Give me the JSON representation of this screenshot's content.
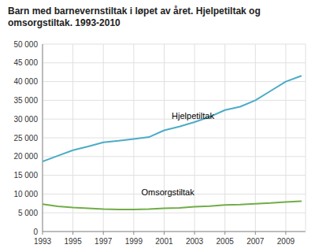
{
  "chart_data": {
    "type": "line",
    "title": "Barn med barnevernstiltak i løpet av året. Hjelpetiltak og omsorgstiltak. 1993-2010",
    "x": [
      1993,
      1994,
      1995,
      1996,
      1997,
      1998,
      1999,
      2000,
      2001,
      2002,
      2003,
      2004,
      2005,
      2006,
      2007,
      2008,
      2009,
      2010
    ],
    "series": [
      {
        "color": "#4bacc6",
        "values": [
          18700,
          20200,
          21700,
          22700,
          23800,
          24200,
          24700,
          25200,
          27000,
          28000,
          29200,
          30600,
          32400,
          33300,
          35000,
          37500,
          40000,
          41500
        ]
      },
      {
        "color": "#70ad47",
        "values": [
          7300,
          6700,
          6400,
          6200,
          6000,
          5900,
          5900,
          6000,
          6200,
          6300,
          6600,
          6800,
          7100,
          7200,
          7400,
          7600,
          7900,
          8100
        ]
      }
    ],
    "annotations": [
      {
        "text": "Hjelpetiltak",
        "x": 2001.5,
        "y": 30000
      },
      {
        "text": "Omsorgstiltak",
        "x": 1999.5,
        "y": 9600
      }
    ],
    "xlim": [
      1993,
      2010.3
    ],
    "xticks": [
      1993,
      1995,
      1997,
      1999,
      2001,
      2003,
      2005,
      2007,
      2009
    ],
    "ylim": [
      0,
      50000
    ],
    "yticks": [
      0,
      {
        "value": 5000,
        "label": "5 000"
      },
      {
        "value": 10000,
        "label": "10 000"
      },
      {
        "value": 15000,
        "label": "15 000"
      },
      {
        "value": 20000,
        "label": "20 000"
      },
      {
        "value": 25000,
        "label": "25 000"
      },
      {
        "value": 30000,
        "label": "30 000"
      },
      {
        "value": 35000,
        "label": "35 000"
      },
      {
        "value": 40000,
        "label": "40 000"
      },
      {
        "value": 45000,
        "label": "45 000"
      },
      {
        "value": 50000,
        "label": "50 000"
      }
    ],
    "grid": true
  }
}
